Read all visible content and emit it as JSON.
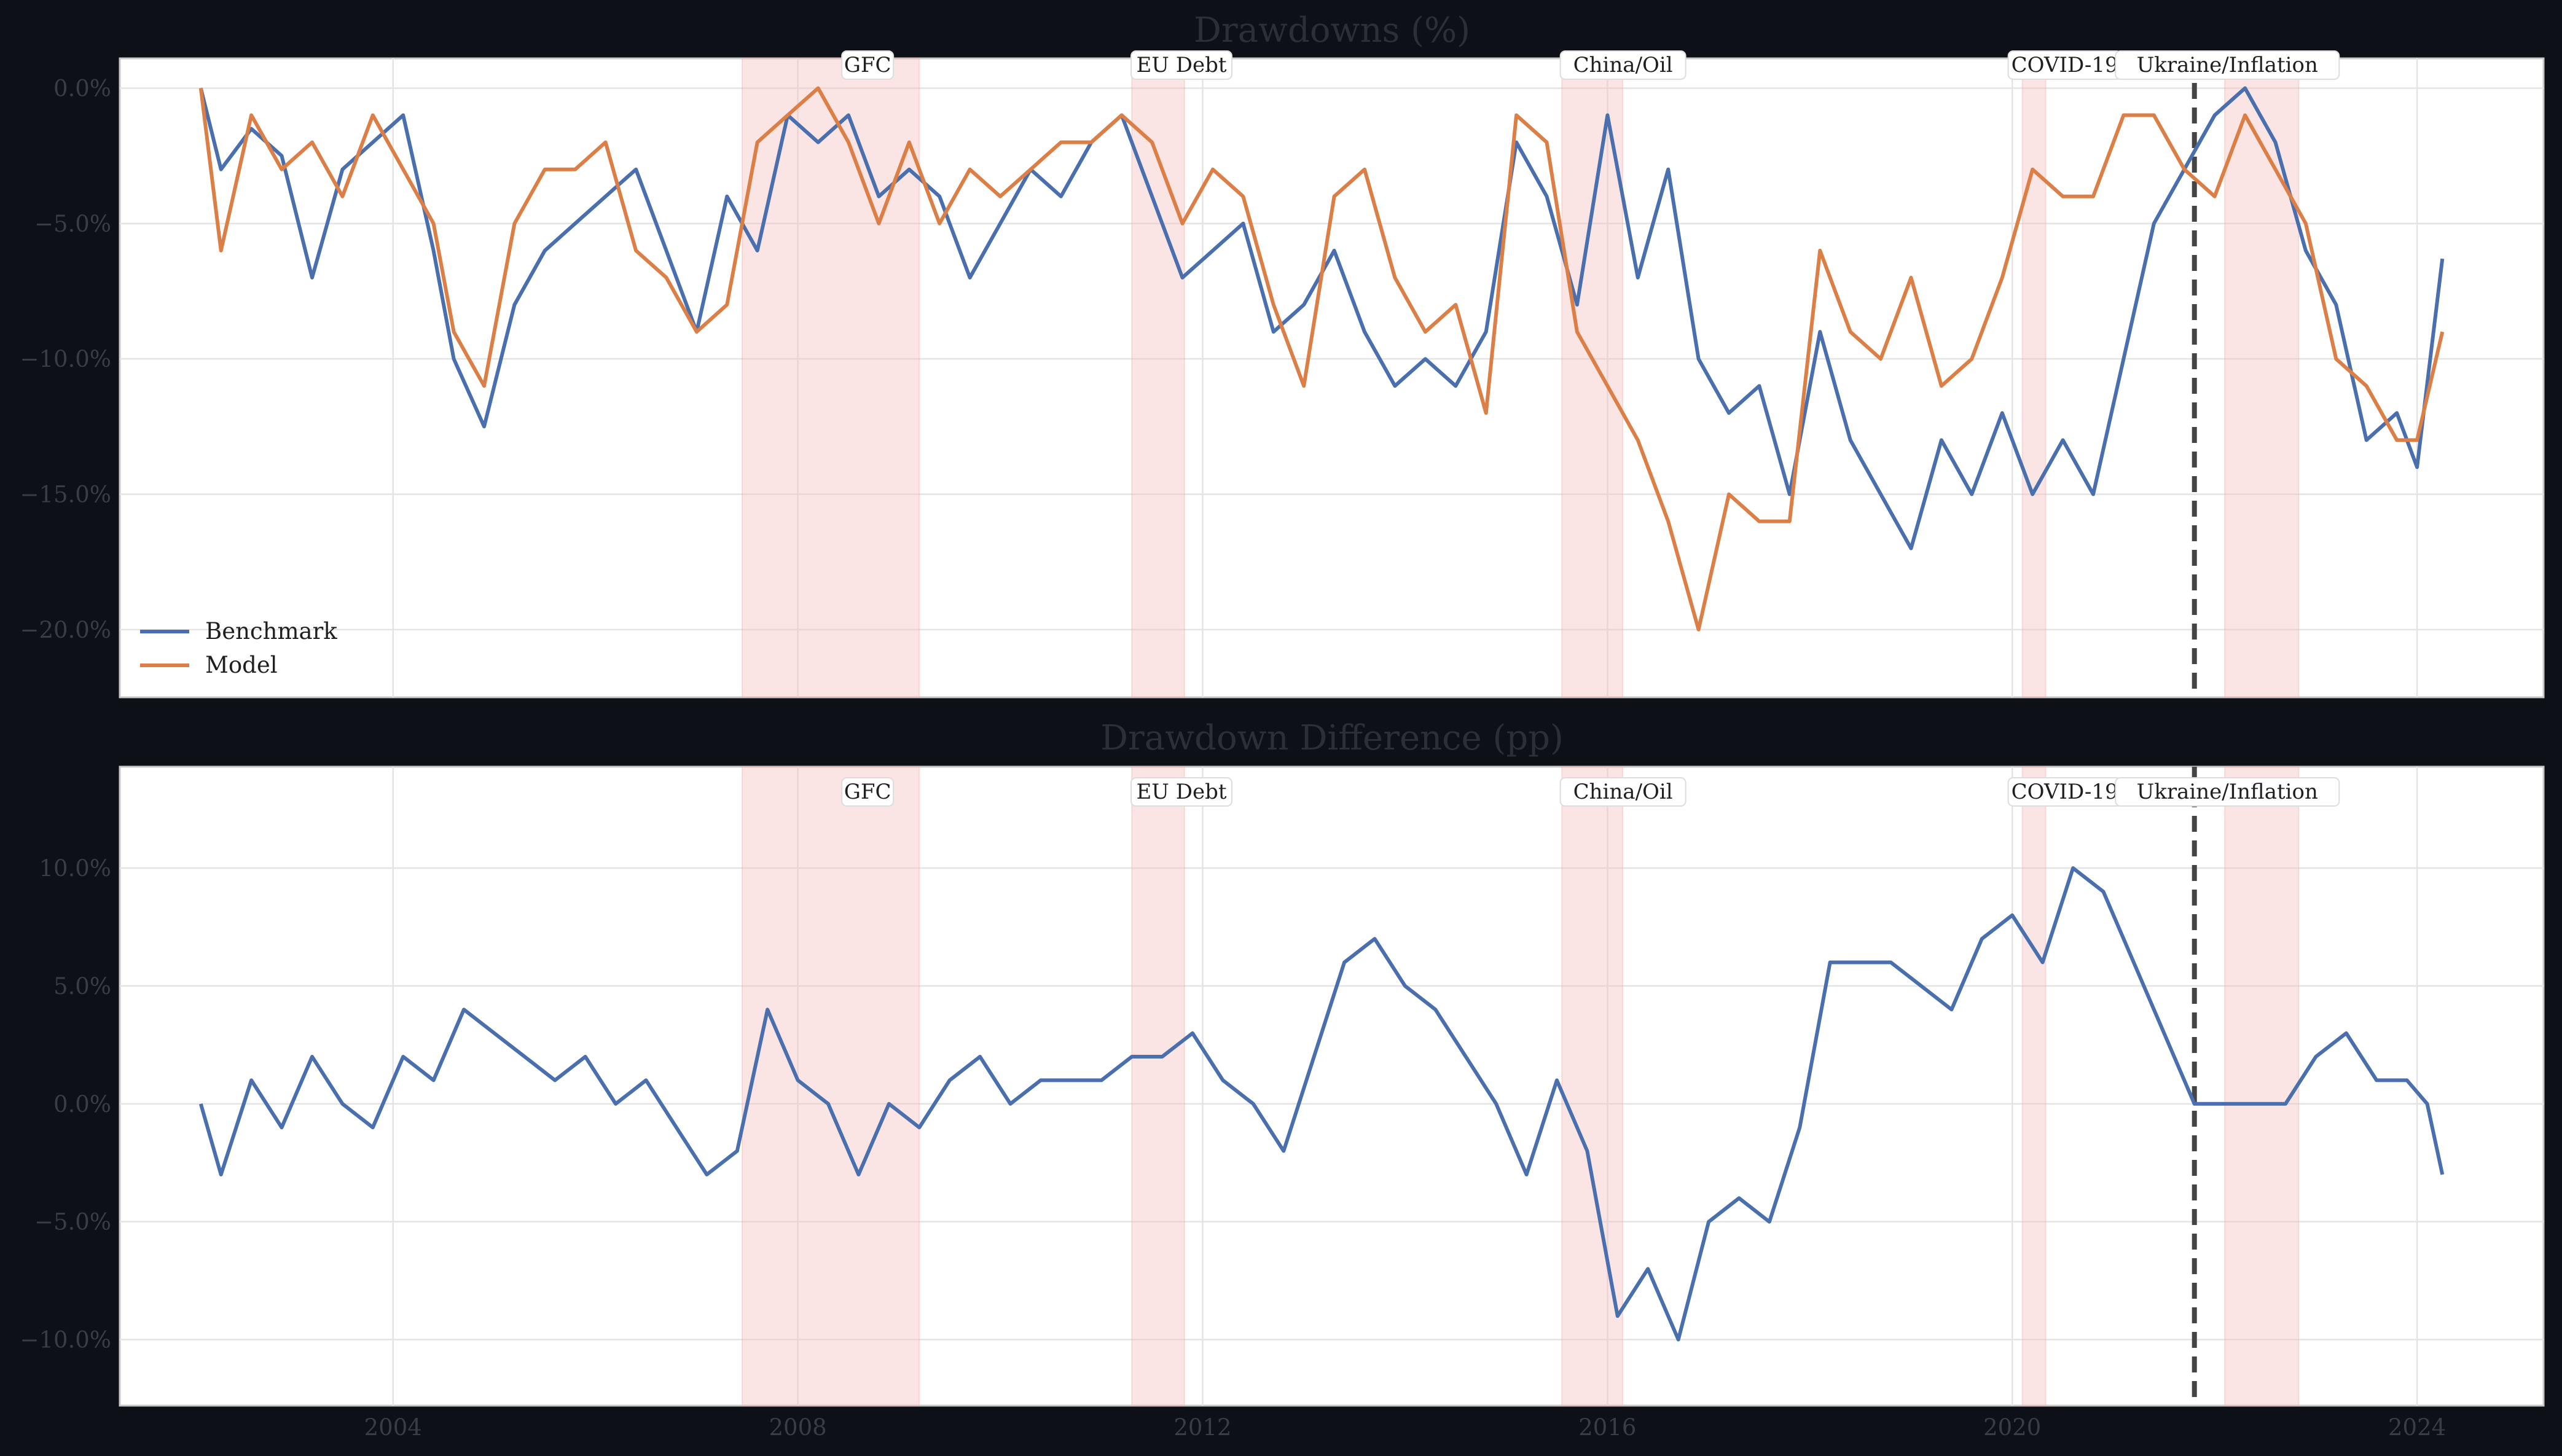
{
  "colors": {
    "background": "#0d1017",
    "benchmark": "#4a6fae",
    "model": "#dc7f47",
    "event_shade": "#f6c2be",
    "vline": "#454545"
  },
  "chart_data": [
    {
      "type": "line",
      "title": "Drawdowns (%)",
      "xlim": [
        2001.3,
        2025.25
      ],
      "ylim": [
        -22.5,
        1.1
      ],
      "yticks": [
        0,
        -5,
        -10,
        -15,
        -20
      ],
      "ytick_labels": [
        "0.0%",
        "−5.0%",
        "−10.0%",
        "−15.0%",
        "−20.0%"
      ],
      "grid": true,
      "legend_position": "bottom-left",
      "events": [
        {
          "label": "GFC",
          "start": 2007.45,
          "end": 2009.2
        },
        {
          "label": "EU Debt",
          "start": 2011.3,
          "end": 2011.82
        },
        {
          "label": "China/Oil",
          "start": 2015.55,
          "end": 2016.15
        },
        {
          "label": "COVID-19",
          "start": 2020.1,
          "end": 2020.33
        },
        {
          "label": "Ukraine/Inflation",
          "start": 2022.1,
          "end": 2022.83
        }
      ],
      "vline": 2021.8,
      "series": [
        {
          "name": "Benchmark",
          "color": "#4a6fae",
          "x": [
            2002.1,
            2002.3,
            2002.6,
            2002.9,
            2003.2,
            2003.5,
            2003.8,
            2004.1,
            2004.4,
            2004.6,
            2004.9,
            2005.2,
            2005.5,
            2005.8,
            2006.1,
            2006.4,
            2006.7,
            2007.0,
            2007.3,
            2007.6,
            2007.9,
            2008.2,
            2008.5,
            2008.8,
            2009.1,
            2009.4,
            2009.7,
            2010.0,
            2010.3,
            2010.6,
            2010.9,
            2011.2,
            2011.5,
            2011.8,
            2012.1,
            2012.4,
            2012.7,
            2013.0,
            2013.3,
            2013.6,
            2013.9,
            2014.2,
            2014.5,
            2014.8,
            2015.1,
            2015.4,
            2015.7,
            2016.0,
            2016.3,
            2016.6,
            2016.9,
            2017.2,
            2017.5,
            2017.8,
            2018.1,
            2018.4,
            2018.7,
            2019.0,
            2019.3,
            2019.6,
            2019.9,
            2020.2,
            2020.5,
            2020.8,
            2021.1,
            2021.4,
            2021.7,
            2022.0,
            2022.3,
            2022.6,
            2022.9,
            2023.2,
            2023.5,
            2023.8,
            2024.0,
            2024.25
          ],
          "values": [
            0,
            -3,
            -1.5,
            -2.5,
            -7,
            -3,
            -2,
            -1,
            -6,
            -10,
            -12.5,
            -8,
            -6,
            -5,
            -4,
            -3,
            -6,
            -9,
            -4,
            -6,
            -1,
            -2,
            -1,
            -4,
            -3,
            -4,
            -7,
            -5,
            -3,
            -4,
            -2,
            -1,
            -4,
            -7,
            -6,
            -5,
            -9,
            -8,
            -6,
            -9,
            -11,
            -10,
            -11,
            -9,
            -2,
            -4,
            -8,
            -1,
            -7,
            -3,
            -10,
            -12,
            -11,
            -15,
            -9,
            -13,
            -15,
            -17,
            -13,
            -15,
            -12,
            -15,
            -13,
            -15,
            -10,
            -5,
            -3,
            -1,
            0,
            -2,
            -6,
            -8,
            -13,
            -12,
            -14,
            -6.3
          ]
        },
        {
          "name": "Model",
          "color": "#dc7f47",
          "x": [
            2002.1,
            2002.3,
            2002.6,
            2002.9,
            2003.2,
            2003.5,
            2003.8,
            2004.1,
            2004.4,
            2004.6,
            2004.9,
            2005.2,
            2005.5,
            2005.8,
            2006.1,
            2006.4,
            2006.7,
            2007.0,
            2007.3,
            2007.6,
            2007.9,
            2008.2,
            2008.5,
            2008.8,
            2009.1,
            2009.4,
            2009.7,
            2010.0,
            2010.3,
            2010.6,
            2010.9,
            2011.2,
            2011.5,
            2011.8,
            2012.1,
            2012.4,
            2012.7,
            2013.0,
            2013.3,
            2013.6,
            2013.9,
            2014.2,
            2014.5,
            2014.8,
            2015.1,
            2015.4,
            2015.7,
            2016.0,
            2016.3,
            2016.6,
            2016.9,
            2017.2,
            2017.5,
            2017.8,
            2018.1,
            2018.4,
            2018.7,
            2019.0,
            2019.3,
            2019.6,
            2019.9,
            2020.2,
            2020.5,
            2020.8,
            2021.1,
            2021.4,
            2021.7,
            2022.0,
            2022.3,
            2022.6,
            2022.9,
            2023.2,
            2023.5,
            2023.8,
            2024.0,
            2024.25
          ],
          "values": [
            0,
            -6,
            -1,
            -3,
            -2,
            -4,
            -1,
            -3,
            -5,
            -9,
            -11,
            -5,
            -3,
            -3,
            -2,
            -6,
            -7,
            -9,
            -8,
            -2,
            -1,
            0,
            -2,
            -5,
            -2,
            -5,
            -3,
            -4,
            -3,
            -2,
            -2,
            -1,
            -2,
            -5,
            -3,
            -4,
            -8,
            -11,
            -4,
            -3,
            -7,
            -9,
            -8,
            -12,
            -1,
            -2,
            -9,
            -11,
            -13,
            -16,
            -20,
            -15,
            -16,
            -16,
            -6,
            -9,
            -10,
            -7,
            -11,
            -10,
            -7,
            -3,
            -4,
            -4,
            -1,
            -1,
            -3,
            -4,
            -1,
            -3,
            -5,
            -10,
            -11,
            -13,
            -13,
            -9
          ]
        }
      ]
    },
    {
      "type": "line",
      "title": "Drawdown Difference (pp)",
      "xlim": [
        2001.3,
        2025.25
      ],
      "ylim": [
        -12.8,
        14.3
      ],
      "yticks": [
        10,
        5,
        0,
        -5,
        -10
      ],
      "ytick_labels": [
        "10.0%",
        "5.0%",
        "0.0%",
        "−5.0%",
        "−10.0%"
      ],
      "xticks": [
        2004,
        2008,
        2012,
        2016,
        2020,
        2024
      ],
      "xtick_labels": [
        "2004",
        "2008",
        "2012",
        "2016",
        "2020",
        "2024"
      ],
      "grid": true,
      "vline": 2021.8,
      "series": [
        {
          "color": "#4a6fae",
          "x": [
            2002.1,
            2002.3,
            2002.6,
            2002.9,
            2003.2,
            2003.5,
            2003.8,
            2004.1,
            2004.4,
            2004.7,
            2005.0,
            2005.3,
            2005.6,
            2005.9,
            2006.2,
            2006.5,
            2006.8,
            2007.1,
            2007.4,
            2007.7,
            2008.0,
            2008.3,
            2008.6,
            2008.9,
            2009.2,
            2009.5,
            2009.8,
            2010.1,
            2010.4,
            2010.7,
            2011.0,
            2011.3,
            2011.6,
            2011.9,
            2012.2,
            2012.5,
            2012.8,
            2013.1,
            2013.4,
            2013.7,
            2014.0,
            2014.3,
            2014.6,
            2014.9,
            2015.2,
            2015.5,
            2015.8,
            2016.1,
            2016.4,
            2016.7,
            2017.0,
            2017.3,
            2017.6,
            2017.9,
            2018.2,
            2018.5,
            2018.8,
            2019.1,
            2019.4,
            2019.7,
            2020.0,
            2020.3,
            2020.6,
            2020.9,
            2021.2,
            2021.5,
            2021.8,
            2022.1,
            2022.4,
            2022.7,
            2023.0,
            2023.3,
            2023.6,
            2023.9,
            2024.1,
            2024.25
          ],
          "values": [
            0,
            -3,
            1,
            -1,
            2,
            0,
            -1,
            2,
            1,
            4,
            3,
            2,
            1,
            2,
            0,
            1,
            -1,
            -3,
            -2,
            4,
            1,
            0,
            -3,
            0,
            -1,
            1,
            2,
            0,
            1,
            1,
            1,
            2,
            2,
            3,
            1,
            0,
            -2,
            2,
            6,
            7,
            5,
            4,
            2,
            0,
            -3,
            1,
            -2,
            -9,
            -7,
            -10,
            -5,
            -4,
            -5,
            -1,
            6,
            6,
            6,
            5,
            4,
            7,
            8,
            6,
            10,
            9,
            6,
            3,
            0,
            0,
            0,
            0,
            2,
            3,
            1,
            1,
            0,
            -3
          ]
        }
      ]
    }
  ],
  "legend": [
    {
      "label": "Benchmark",
      "color": "#4a6fae"
    },
    {
      "label": "Model",
      "color": "#dc7f47"
    }
  ]
}
